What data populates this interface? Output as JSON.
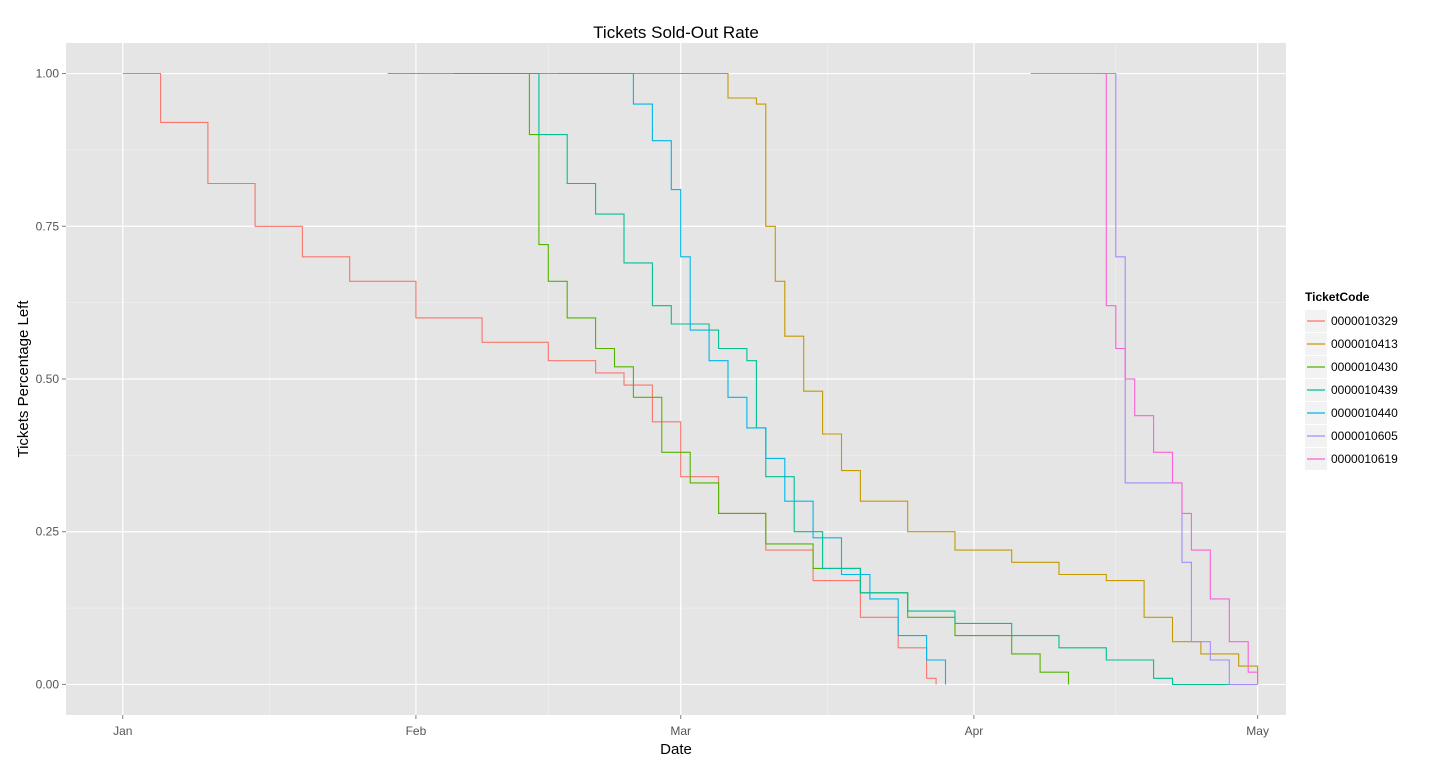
{
  "chart_data": {
    "type": "line",
    "title": "Tickets Sold-Out Rate",
    "xlabel": "Date",
    "ylabel": "Tickets Percentage Left",
    "x_ticks": [
      {
        "label": "Jan",
        "date": "2014-01-01"
      },
      {
        "label": "Feb",
        "date": "2014-02-01"
      },
      {
        "label": "Mar",
        "date": "2014-03-01"
      },
      {
        "label": "Apr",
        "date": "2014-04-01"
      },
      {
        "label": "May",
        "date": "2014-05-01"
      }
    ],
    "y_ticks": [
      "0.00",
      "0.25",
      "0.50",
      "0.75",
      "1.00"
    ],
    "xlim": [
      "2013-12-26",
      "2014-05-04"
    ],
    "ylim": [
      -0.05,
      1.05
    ],
    "grid": true,
    "legend": {
      "title": "TicketCode",
      "position": "right"
    },
    "series": [
      {
        "name": "0000010329",
        "color": "#F8766D",
        "points": [
          [
            "2014-01-01",
            1.0
          ],
          [
            "2014-01-05",
            0.92
          ],
          [
            "2014-01-10",
            0.82
          ],
          [
            "2014-01-15",
            0.75
          ],
          [
            "2014-01-20",
            0.7
          ],
          [
            "2014-01-25",
            0.66
          ],
          [
            "2014-02-01",
            0.6
          ],
          [
            "2014-02-08",
            0.56
          ],
          [
            "2014-02-15",
            0.53
          ],
          [
            "2014-02-20",
            0.51
          ],
          [
            "2014-02-23",
            0.49
          ],
          [
            "2014-02-26",
            0.43
          ],
          [
            "2014-03-01",
            0.34
          ],
          [
            "2014-03-05",
            0.28
          ],
          [
            "2014-03-10",
            0.22
          ],
          [
            "2014-03-15",
            0.17
          ],
          [
            "2014-03-20",
            0.11
          ],
          [
            "2014-03-24",
            0.06
          ],
          [
            "2014-03-27",
            0.01
          ],
          [
            "2014-03-28",
            0.0
          ]
        ]
      },
      {
        "name": "0000010413",
        "color": "#C49A00",
        "points": [
          [
            "2014-01-29",
            1.0
          ],
          [
            "2014-02-10",
            1.0
          ],
          [
            "2014-03-05",
            1.0
          ],
          [
            "2014-03-06",
            0.96
          ],
          [
            "2014-03-09",
            0.95
          ],
          [
            "2014-03-10",
            0.75
          ],
          [
            "2014-03-11",
            0.66
          ],
          [
            "2014-03-12",
            0.57
          ],
          [
            "2014-03-14",
            0.48
          ],
          [
            "2014-03-16",
            0.41
          ],
          [
            "2014-03-18",
            0.35
          ],
          [
            "2014-03-20",
            0.3
          ],
          [
            "2014-03-25",
            0.25
          ],
          [
            "2014-03-30",
            0.22
          ],
          [
            "2014-04-05",
            0.2
          ],
          [
            "2014-04-10",
            0.18
          ],
          [
            "2014-04-15",
            0.17
          ],
          [
            "2014-04-19",
            0.11
          ],
          [
            "2014-04-22",
            0.07
          ],
          [
            "2014-04-25",
            0.05
          ],
          [
            "2014-04-29",
            0.03
          ],
          [
            "2014-05-01",
            0.0
          ]
        ]
      },
      {
        "name": "0000010430",
        "color": "#53B400",
        "points": [
          [
            "2014-02-05",
            1.0
          ],
          [
            "2014-02-12",
            1.0
          ],
          [
            "2014-02-13",
            0.9
          ],
          [
            "2014-02-14",
            0.72
          ],
          [
            "2014-02-15",
            0.66
          ],
          [
            "2014-02-17",
            0.6
          ],
          [
            "2014-02-20",
            0.55
          ],
          [
            "2014-02-22",
            0.52
          ],
          [
            "2014-02-24",
            0.47
          ],
          [
            "2014-02-27",
            0.38
          ],
          [
            "2014-03-02",
            0.33
          ],
          [
            "2014-03-05",
            0.28
          ],
          [
            "2014-03-10",
            0.23
          ],
          [
            "2014-03-15",
            0.19
          ],
          [
            "2014-03-20",
            0.15
          ],
          [
            "2014-03-25",
            0.11
          ],
          [
            "2014-03-30",
            0.08
          ],
          [
            "2014-04-05",
            0.05
          ],
          [
            "2014-04-08",
            0.02
          ],
          [
            "2014-04-11",
            0.0
          ]
        ]
      },
      {
        "name": "0000010439",
        "color": "#00C094",
        "points": [
          [
            "2014-02-05",
            1.0
          ],
          [
            "2014-02-13",
            1.0
          ],
          [
            "2014-02-14",
            0.9
          ],
          [
            "2014-02-17",
            0.82
          ],
          [
            "2014-02-20",
            0.77
          ],
          [
            "2014-02-23",
            0.69
          ],
          [
            "2014-02-26",
            0.62
          ],
          [
            "2014-02-28",
            0.59
          ],
          [
            "2014-03-04",
            0.58
          ],
          [
            "2014-03-05",
            0.55
          ],
          [
            "2014-03-08",
            0.53
          ],
          [
            "2014-03-09",
            0.42
          ],
          [
            "2014-03-10",
            0.34
          ],
          [
            "2014-03-13",
            0.25
          ],
          [
            "2014-03-16",
            0.19
          ],
          [
            "2014-03-20",
            0.15
          ],
          [
            "2014-03-25",
            0.12
          ],
          [
            "2014-03-30",
            0.1
          ],
          [
            "2014-04-05",
            0.08
          ],
          [
            "2014-04-10",
            0.06
          ],
          [
            "2014-04-15",
            0.04
          ],
          [
            "2014-04-20",
            0.01
          ],
          [
            "2014-04-22",
            0.0
          ],
          [
            "2014-04-30",
            0.0
          ]
        ]
      },
      {
        "name": "0000010440",
        "color": "#00B6EB",
        "points": [
          [
            "2014-02-16",
            1.0
          ],
          [
            "2014-02-23",
            1.0
          ],
          [
            "2014-02-24",
            0.95
          ],
          [
            "2014-02-26",
            0.89
          ],
          [
            "2014-02-28",
            0.81
          ],
          [
            "2014-03-01",
            0.7
          ],
          [
            "2014-03-02",
            0.58
          ],
          [
            "2014-03-04",
            0.53
          ],
          [
            "2014-03-06",
            0.47
          ],
          [
            "2014-03-08",
            0.42
          ],
          [
            "2014-03-10",
            0.37
          ],
          [
            "2014-03-12",
            0.3
          ],
          [
            "2014-03-15",
            0.24
          ],
          [
            "2014-03-18",
            0.18
          ],
          [
            "2014-03-21",
            0.14
          ],
          [
            "2014-03-24",
            0.08
          ],
          [
            "2014-03-27",
            0.04
          ],
          [
            "2014-03-29",
            0.0
          ]
        ]
      },
      {
        "name": "0000010605",
        "color": "#A58AFF",
        "points": [
          [
            "2014-04-07",
            1.0
          ],
          [
            "2014-04-16",
            1.0
          ],
          [
            "2014-04-16",
            0.7
          ],
          [
            "2014-04-17",
            0.45
          ],
          [
            "2014-04-17",
            0.33
          ],
          [
            "2014-04-23",
            0.33
          ],
          [
            "2014-04-23",
            0.2
          ],
          [
            "2014-04-24",
            0.07
          ],
          [
            "2014-04-26",
            0.04
          ],
          [
            "2014-04-28",
            0.0
          ],
          [
            "2014-05-01",
            0.0
          ]
        ]
      },
      {
        "name": "0000010619",
        "color": "#FB61D7",
        "points": [
          [
            "2014-04-14",
            1.0
          ],
          [
            "2014-04-15",
            0.8
          ],
          [
            "2014-04-15",
            0.62
          ],
          [
            "2014-04-16",
            0.55
          ],
          [
            "2014-04-17",
            0.5
          ],
          [
            "2014-04-18",
            0.44
          ],
          [
            "2014-04-20",
            0.38
          ],
          [
            "2014-04-22",
            0.33
          ],
          [
            "2014-04-23",
            0.28
          ],
          [
            "2014-04-24",
            0.22
          ],
          [
            "2014-04-26",
            0.14
          ],
          [
            "2014-04-28",
            0.07
          ],
          [
            "2014-04-30",
            0.02
          ],
          [
            "2014-05-01",
            0.0
          ]
        ]
      }
    ]
  }
}
